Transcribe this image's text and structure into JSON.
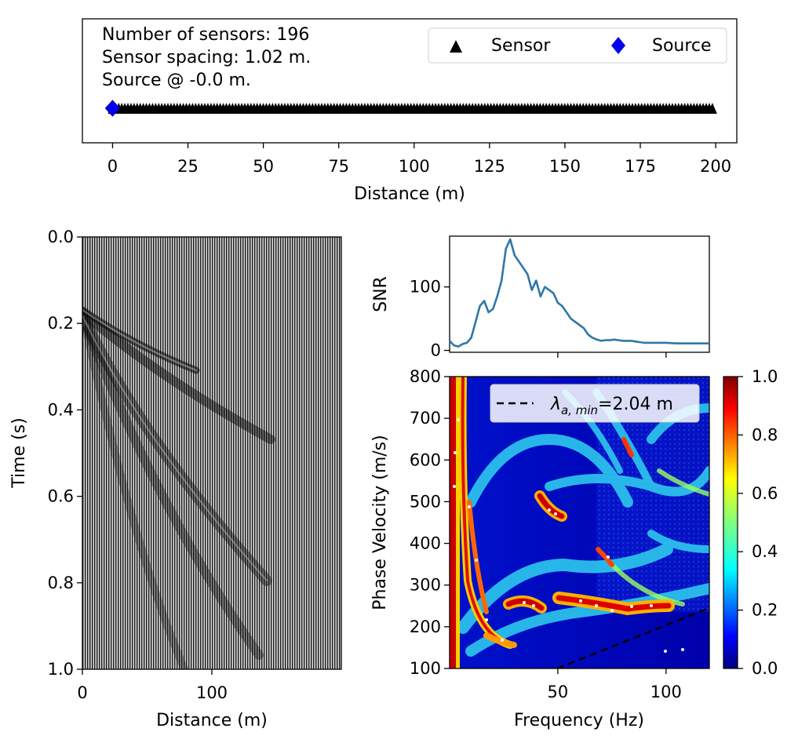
{
  "chart_data": [
    {
      "type": "scatter",
      "name": "array-geometry",
      "info_lines": [
        "Number of sensors: 196",
        "Sensor spacing: 1.02 m.",
        "Source @ -0.0 m."
      ],
      "sensor_count": 196,
      "sensor_spacing": 1.02,
      "source_position": -0.0,
      "xlabel": "Distance (m)",
      "xlim": [
        -10,
        207
      ],
      "xticks": [
        0,
        25,
        50,
        75,
        100,
        125,
        150,
        175,
        200
      ],
      "legend": [
        {
          "label": "Sensor",
          "marker": "triangle",
          "color": "#000000"
        },
        {
          "label": "Source",
          "marker": "diamond",
          "color": "#0000ee"
        }
      ],
      "legend_position": "top-right"
    },
    {
      "type": "heatmap",
      "name": "waterfall-plot",
      "xlabel": "Distance (m)",
      "ylabel": "Time (s)",
      "xlim": [
        0,
        200
      ],
      "ylim": [
        1.0,
        0.0
      ],
      "xticks": [
        0,
        100
      ],
      "yticks": [
        "0.0",
        "0.2",
        "0.4",
        "0.6",
        "0.8",
        "1.0"
      ],
      "colormap": "gray"
    },
    {
      "type": "line",
      "name": "snr-plot",
      "ylabel": "SNR",
      "yticks": [
        0,
        100
      ],
      "ylim": [
        -3,
        180
      ],
      "xlim": [
        0,
        120
      ],
      "color": "#2f77a8",
      "x": [
        0,
        2,
        4,
        6,
        8,
        10,
        12,
        14,
        16,
        18,
        20,
        22,
        24,
        26,
        28,
        30,
        32,
        34,
        36,
        38,
        40,
        42,
        44,
        46,
        48,
        50,
        52,
        54,
        56,
        58,
        60,
        62,
        64,
        66,
        68,
        70,
        72,
        74,
        76,
        78,
        80,
        82,
        84,
        86,
        88,
        90,
        95,
        100,
        105,
        110,
        115,
        120
      ],
      "y": [
        15,
        8,
        6,
        10,
        12,
        20,
        45,
        70,
        78,
        60,
        65,
        85,
        110,
        160,
        175,
        150,
        140,
        130,
        120,
        95,
        110,
        85,
        100,
        95,
        90,
        75,
        70,
        60,
        50,
        45,
        40,
        35,
        25,
        20,
        17,
        15,
        16,
        16,
        17,
        16,
        15,
        15,
        15,
        14,
        13,
        12,
        12,
        12,
        11,
        11,
        11,
        11
      ]
    },
    {
      "type": "heatmap",
      "name": "dispersion-image",
      "xlabel": "Frequency (Hz)",
      "ylabel": "Phase Velocity (m/s)",
      "xlim": [
        0,
        120
      ],
      "ylim": [
        100,
        800
      ],
      "xticks": [
        50,
        100
      ],
      "yticks": [
        100,
        200,
        300,
        400,
        500,
        600,
        700,
        800
      ],
      "colormap": "jet",
      "colorbar_ticks": [
        "0.0",
        "0.2",
        "0.4",
        "0.6",
        "0.8",
        "1.0"
      ],
      "legend": [
        {
          "label": "=2.04 m",
          "label_symbol": "λ",
          "label_sub": "a, min",
          "style": "dashed",
          "color": "#000000"
        }
      ],
      "legend_position": "top-right",
      "lambda_min": 2.04
    }
  ]
}
